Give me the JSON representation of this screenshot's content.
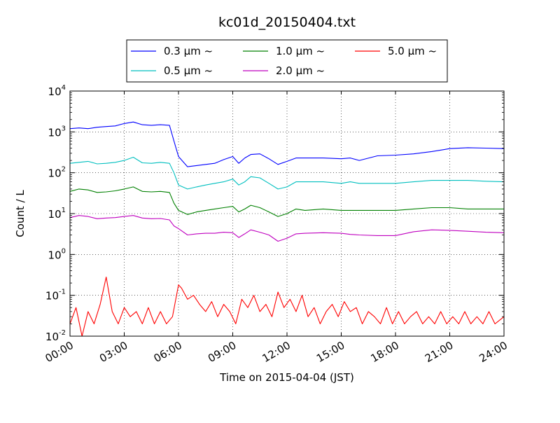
{
  "chart_data": {
    "type": "line",
    "title": "kc01d_20150404.txt",
    "xlabel": "Time on 2015-04-04 (JST)",
    "ylabel": "Count / L",
    "yscale": "log",
    "ylim": [
      0.01,
      10000
    ],
    "xlim": [
      "00:00",
      "24:00"
    ],
    "x_ticks": [
      "00:00",
      "03:00",
      "06:00",
      "09:00",
      "12:00",
      "15:00",
      "18:00",
      "21:00",
      "24:00"
    ],
    "y_ticks": [
      {
        "base": "10",
        "exp": "-2"
      },
      {
        "base": "10",
        "exp": "-1"
      },
      {
        "base": "10",
        "exp": "0"
      },
      {
        "base": "10",
        "exp": "1"
      },
      {
        "base": "10",
        "exp": "2"
      },
      {
        "base": "10",
        "exp": "3"
      },
      {
        "base": "10",
        "exp": "4"
      }
    ],
    "grid": true,
    "legend_position": "top",
    "series": [
      {
        "name": "0.3 μm ~",
        "color": "#0000ff",
        "x": [
          "00:00",
          "00:30",
          "01:00",
          "01:30",
          "02:00",
          "02:30",
          "03:00",
          "03:30",
          "04:00",
          "04:30",
          "05:00",
          "05:30",
          "05:45",
          "06:00",
          "06:30",
          "07:00",
          "07:30",
          "08:00",
          "08:30",
          "09:00",
          "09:20",
          "09:40",
          "10:00",
          "10:30",
          "11:00",
          "11:30",
          "12:00",
          "12:30",
          "13:00",
          "14:00",
          "15:00",
          "15:30",
          "16:00",
          "17:00",
          "18:00",
          "19:00",
          "20:00",
          "21:00",
          "22:00",
          "23:00",
          "24:00"
        ],
        "values": [
          1200,
          1250,
          1200,
          1300,
          1350,
          1400,
          1600,
          1750,
          1500,
          1450,
          1500,
          1450,
          600,
          250,
          140,
          150,
          160,
          170,
          210,
          250,
          170,
          230,
          280,
          290,
          220,
          160,
          190,
          230,
          230,
          230,
          220,
          230,
          200,
          260,
          270,
          290,
          330,
          390,
          410,
          400,
          390
        ]
      },
      {
        "name": "0.5 μm ~",
        "color": "#00bfbf",
        "x": [
          "00:00",
          "00:30",
          "01:00",
          "01:30",
          "02:00",
          "02:30",
          "03:00",
          "03:30",
          "04:00",
          "04:30",
          "05:00",
          "05:30",
          "05:45",
          "06:00",
          "06:30",
          "07:00",
          "07:30",
          "08:00",
          "08:30",
          "09:00",
          "09:20",
          "09:40",
          "10:00",
          "10:30",
          "11:00",
          "11:30",
          "12:00",
          "12:30",
          "13:00",
          "14:00",
          "15:00",
          "15:30",
          "16:00",
          "17:00",
          "18:00",
          "19:00",
          "20:00",
          "21:00",
          "22:00",
          "23:00",
          "24:00"
        ],
        "values": [
          170,
          180,
          190,
          165,
          170,
          180,
          200,
          240,
          175,
          170,
          180,
          170,
          100,
          50,
          40,
          45,
          50,
          55,
          60,
          70,
          50,
          60,
          80,
          75,
          55,
          40,
          45,
          60,
          60,
          60,
          55,
          60,
          55,
          55,
          55,
          60,
          65,
          65,
          65,
          62,
          60
        ]
      },
      {
        "name": "1.0 μm ~",
        "color": "#008000",
        "x": [
          "00:00",
          "00:30",
          "01:00",
          "01:30",
          "02:00",
          "02:30",
          "03:00",
          "03:30",
          "04:00",
          "04:30",
          "05:00",
          "05:30",
          "05:45",
          "06:00",
          "06:30",
          "07:00",
          "07:30",
          "08:00",
          "08:30",
          "09:00",
          "09:20",
          "09:40",
          "10:00",
          "10:30",
          "11:00",
          "11:30",
          "12:00",
          "12:30",
          "13:00",
          "14:00",
          "15:00",
          "15:30",
          "16:00",
          "17:00",
          "18:00",
          "19:00",
          "20:00",
          "21:00",
          "22:00",
          "23:00",
          "24:00"
        ],
        "values": [
          35,
          40,
          38,
          33,
          34,
          36,
          40,
          45,
          35,
          34,
          35,
          33,
          18,
          12,
          9.5,
          11,
          12,
          13,
          14,
          15,
          11,
          13,
          16,
          14,
          11,
          8.5,
          10,
          13,
          12,
          13,
          12,
          12,
          12,
          12,
          12,
          13,
          14,
          14,
          13,
          13,
          13
        ]
      },
      {
        "name": "2.0 μm ~",
        "color": "#bf00bf",
        "x": [
          "00:00",
          "00:30",
          "01:00",
          "01:30",
          "02:00",
          "02:30",
          "03:00",
          "03:30",
          "04:00",
          "04:30",
          "05:00",
          "05:30",
          "05:45",
          "06:00",
          "06:30",
          "07:00",
          "07:30",
          "08:00",
          "08:30",
          "09:00",
          "09:20",
          "09:40",
          "10:00",
          "10:30",
          "11:00",
          "11:30",
          "12:00",
          "12:30",
          "13:00",
          "14:00",
          "15:00",
          "15:30",
          "16:00",
          "17:00",
          "18:00",
          "19:00",
          "20:00",
          "21:00",
          "22:00",
          "23:00",
          "24:00"
        ],
        "values": [
          8,
          9,
          8.5,
          7.5,
          7.8,
          8,
          8.5,
          9,
          7.8,
          7.5,
          7.6,
          7,
          5,
          4.3,
          3,
          3.2,
          3.3,
          3.3,
          3.5,
          3.4,
          2.6,
          3.2,
          4,
          3.5,
          3,
          2.1,
          2.5,
          3.2,
          3.3,
          3.4,
          3.3,
          3.1,
          3,
          2.9,
          2.9,
          3.6,
          4,
          3.9,
          3.7,
          3.5,
          3.4
        ]
      },
      {
        "name": "5.0 μm ~",
        "color": "#ff0000",
        "x": [
          "00:00",
          "00:20",
          "00:40",
          "01:00",
          "01:20",
          "01:40",
          "02:00",
          "02:20",
          "02:40",
          "03:00",
          "03:20",
          "03:40",
          "04:00",
          "04:20",
          "04:40",
          "05:00",
          "05:20",
          "05:40",
          "06:00",
          "06:10",
          "06:30",
          "06:50",
          "07:10",
          "07:30",
          "07:50",
          "08:10",
          "08:30",
          "08:50",
          "09:10",
          "09:30",
          "09:50",
          "10:10",
          "10:30",
          "10:50",
          "11:10",
          "11:30",
          "11:50",
          "12:10",
          "12:30",
          "12:50",
          "13:10",
          "13:30",
          "13:50",
          "14:10",
          "14:30",
          "14:50",
          "15:10",
          "15:30",
          "15:50",
          "16:10",
          "16:30",
          "16:50",
          "17:10",
          "17:30",
          "17:50",
          "18:10",
          "18:30",
          "18:50",
          "19:10",
          "19:30",
          "19:50",
          "20:10",
          "20:30",
          "20:50",
          "21:10",
          "21:30",
          "21:50",
          "22:10",
          "22:30",
          "22:50",
          "23:10",
          "23:30",
          "24:00"
        ],
        "values": [
          0.02,
          0.05,
          0.01,
          0.04,
          0.02,
          0.06,
          0.28,
          0.04,
          0.02,
          0.05,
          0.03,
          0.04,
          0.02,
          0.05,
          0.02,
          0.04,
          0.02,
          0.03,
          0.18,
          0.15,
          0.08,
          0.1,
          0.06,
          0.04,
          0.07,
          0.03,
          0.06,
          0.04,
          0.02,
          0.08,
          0.05,
          0.1,
          0.04,
          0.06,
          0.03,
          0.12,
          0.05,
          0.08,
          0.04,
          0.1,
          0.03,
          0.05,
          0.02,
          0.04,
          0.06,
          0.03,
          0.07,
          0.04,
          0.05,
          0.02,
          0.04,
          0.03,
          0.02,
          0.05,
          0.02,
          0.04,
          0.02,
          0.03,
          0.04,
          0.02,
          0.03,
          0.02,
          0.04,
          0.02,
          0.03,
          0.02,
          0.04,
          0.02,
          0.03,
          0.02,
          0.04,
          0.02,
          0.03
        ]
      }
    ]
  }
}
